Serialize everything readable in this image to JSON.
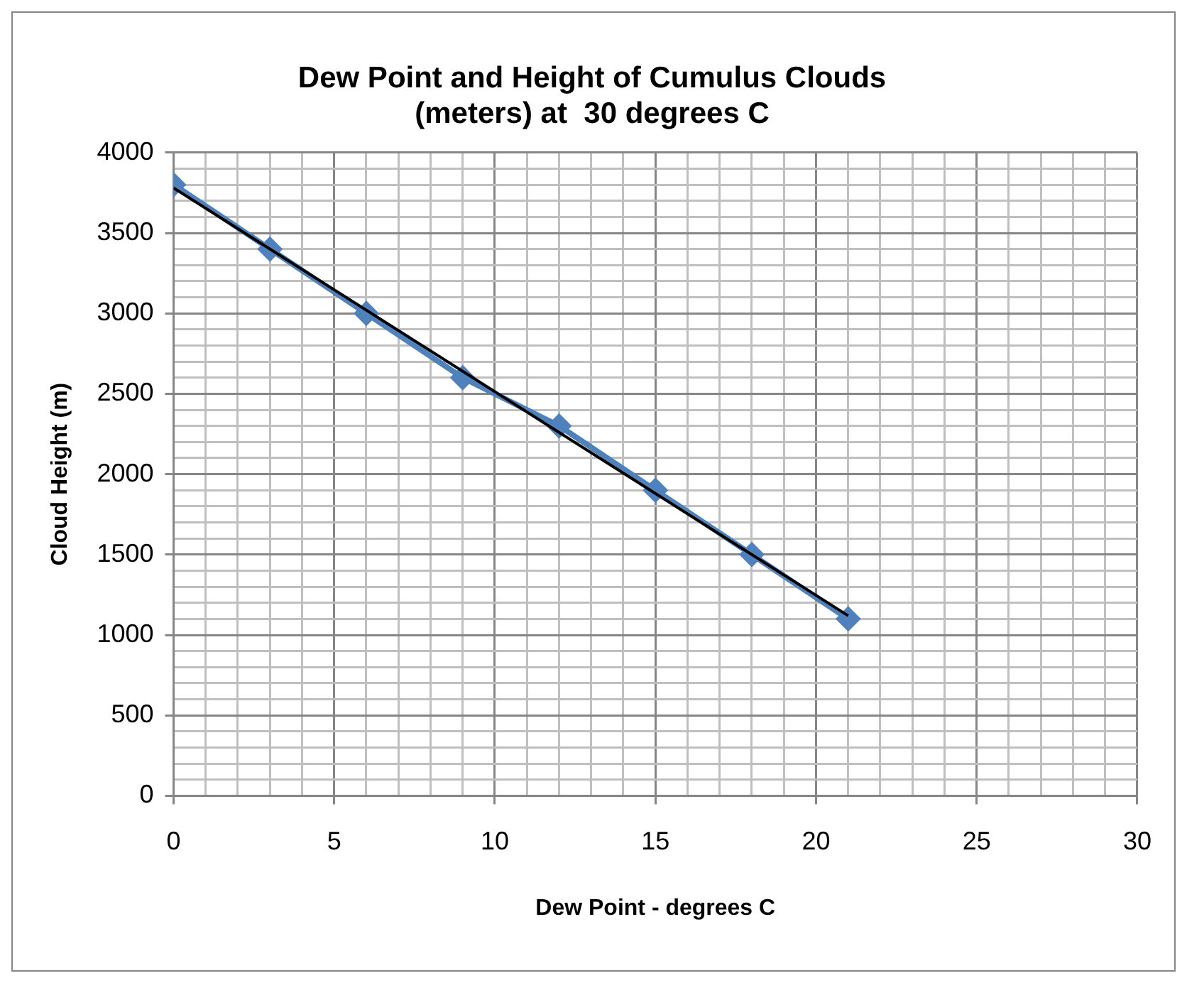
{
  "chart_data": {
    "type": "line",
    "title": "Dew Point and Height of Cumulus Clouds (meters) at  30 degrees C",
    "xlabel": "Dew Point - degrees C",
    "ylabel": "Cloud Height (m)",
    "x": [
      0,
      3,
      6,
      9,
      12,
      15,
      18,
      21
    ],
    "series": [
      {
        "color": "#4f81bd",
        "values": [
          3800,
          3400,
          3000,
          2600,
          2300,
          1900,
          1500,
          1100
        ],
        "marker": "diamond"
      },
      {
        "type": "line",
        "color": "#000000",
        "x": [
          0,
          21
        ],
        "values": [
          3780,
          1120
        ],
        "marker": "none"
      }
    ],
    "xlim": [
      0,
      30
    ],
    "ylim": [
      0,
      4000
    ],
    "xticks": [
      0,
      {
        "value": 1,
        "label": null
      },
      {
        "value": 2,
        "label": null
      },
      {
        "value": 3,
        "label": null
      },
      {
        "value": 4,
        "label": null
      },
      5,
      {
        "value": 6,
        "label": null
      },
      {
        "value": 7,
        "label": null
      },
      {
        "value": 8,
        "label": null
      },
      {
        "value": 9,
        "label": null
      },
      10,
      {
        "value": 11,
        "label": null
      },
      {
        "value": 12,
        "label": null
      },
      {
        "value": 13,
        "label": null
      },
      {
        "value": 14,
        "label": null
      },
      15,
      {
        "value": 16,
        "label": null
      },
      {
        "value": 17,
        "label": null
      },
      {
        "value": 18,
        "label": null
      },
      {
        "value": 19,
        "label": null
      },
      20,
      {
        "value": 21,
        "label": null
      },
      {
        "value": 22,
        "label": null
      },
      {
        "value": 23,
        "label": null
      },
      {
        "value": 24,
        "label": null
      },
      25,
      {
        "value": 26,
        "label": null
      },
      {
        "value": 27,
        "label": null
      },
      {
        "value": 28,
        "label": null
      },
      {
        "value": 29,
        "label": null
      },
      30
    ],
    "yticks": [
      0,
      {
        "value": 100,
        "label": null
      },
      {
        "value": 200,
        "label": null
      },
      {
        "value": 300,
        "label": null
      },
      {
        "value": 400,
        "label": null
      },
      500,
      {
        "value": 600,
        "label": null
      },
      {
        "value": 700,
        "label": null
      },
      {
        "value": 800,
        "label": null
      },
      {
        "value": 900,
        "label": null
      },
      1000,
      {
        "value": 1100,
        "label": null
      },
      {
        "value": 1200,
        "label": null
      },
      {
        "value": 1300,
        "label": null
      },
      {
        "value": 1400,
        "label": null
      },
      1500,
      {
        "value": 1600,
        "label": null
      },
      {
        "value": 1700,
        "label": null
      },
      {
        "value": 1800,
        "label": null
      },
      {
        "value": 1900,
        "label": null
      },
      2000,
      {
        "value": 2100,
        "label": null
      },
      {
        "value": 2200,
        "label": null
      },
      {
        "value": 2300,
        "label": null
      },
      {
        "value": 2400,
        "label": null
      },
      2500,
      {
        "value": 2600,
        "label": null
      },
      {
        "value": 2700,
        "label": null
      },
      {
        "value": 2800,
        "label": null
      },
      {
        "value": 2900,
        "label": null
      },
      3000,
      {
        "value": 3100,
        "label": null
      },
      {
        "value": 3200,
        "label": null
      },
      {
        "value": 3300,
        "label": null
      },
      {
        "value": 3400,
        "label": null
      },
      3500,
      {
        "value": 3600,
        "label": null
      },
      {
        "value": 3700,
        "label": null
      },
      {
        "value": 3800,
        "label": null
      },
      {
        "value": 3900,
        "label": null
      },
      4000
    ],
    "grid": true,
    "legend": false
  }
}
